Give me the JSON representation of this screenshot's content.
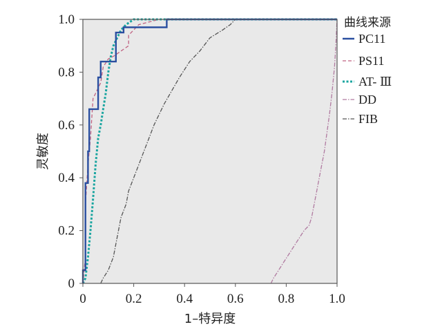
{
  "chart_data": {
    "type": "line",
    "title": "",
    "xlabel": "1–特异度",
    "ylabel": "灵敏度",
    "xlim": [
      0,
      1.0
    ],
    "ylim": [
      0,
      1.0
    ],
    "x_ticks": [
      "0",
      "0.2",
      "0.4",
      "0.6",
      "0.8",
      "1.0"
    ],
    "y_ticks": [
      "0",
      "0.2",
      "0.4",
      "0.6",
      "0.8",
      "1.0"
    ],
    "grid": false,
    "background": "#e9e9e9",
    "legend": {
      "title": "曲线来源",
      "placement": "right"
    },
    "series": [
      {
        "name": "PC11",
        "color": "#2a4fa0",
        "style": "solid",
        "points": [
          [
            0,
            0
          ],
          [
            0,
            0.05
          ],
          [
            0.01,
            0.05
          ],
          [
            0.01,
            0.38
          ],
          [
            0.02,
            0.38
          ],
          [
            0.02,
            0.5
          ],
          [
            0.025,
            0.5
          ],
          [
            0.025,
            0.66
          ],
          [
            0.06,
            0.66
          ],
          [
            0.06,
            0.78
          ],
          [
            0.07,
            0.78
          ],
          [
            0.07,
            0.84
          ],
          [
            0.13,
            0.84
          ],
          [
            0.13,
            0.95
          ],
          [
            0.16,
            0.95
          ],
          [
            0.16,
            0.97
          ],
          [
            0.33,
            0.97
          ],
          [
            0.33,
            1.0
          ],
          [
            1.0,
            1.0
          ]
        ]
      },
      {
        "name": "PS11",
        "color": "#c06080",
        "style": "dashed",
        "points": [
          [
            0,
            0
          ],
          [
            0.01,
            0.1
          ],
          [
            0.01,
            0.3
          ],
          [
            0.02,
            0.45
          ],
          [
            0.03,
            0.55
          ],
          [
            0.04,
            0.7
          ],
          [
            0.05,
            0.72
          ],
          [
            0.07,
            0.76
          ],
          [
            0.08,
            0.82
          ],
          [
            0.1,
            0.85
          ],
          [
            0.12,
            0.86
          ],
          [
            0.15,
            0.88
          ],
          [
            0.18,
            0.9
          ],
          [
            0.18,
            0.94
          ],
          [
            0.2,
            0.96
          ],
          [
            0.22,
            0.98
          ],
          [
            0.3,
            1.0
          ],
          [
            1.0,
            1.0
          ]
        ]
      },
      {
        "name": "AT- Ⅲ",
        "color": "#1aa5a0",
        "style": "dotted",
        "points": [
          [
            0,
            0
          ],
          [
            0.01,
            0.02
          ],
          [
            0.02,
            0.1
          ],
          [
            0.03,
            0.2
          ],
          [
            0.04,
            0.32
          ],
          [
            0.05,
            0.45
          ],
          [
            0.06,
            0.55
          ],
          [
            0.07,
            0.6
          ],
          [
            0.08,
            0.66
          ],
          [
            0.09,
            0.72
          ],
          [
            0.1,
            0.8
          ],
          [
            0.11,
            0.86
          ],
          [
            0.12,
            0.9
          ],
          [
            0.13,
            0.92
          ],
          [
            0.15,
            0.96
          ],
          [
            0.17,
            0.98
          ],
          [
            0.2,
            1.0
          ],
          [
            1.0,
            1.0
          ]
        ]
      },
      {
        "name": "DD",
        "color": "#b07aa0",
        "style": "dashdot",
        "points": [
          [
            0.74,
            0
          ],
          [
            0.75,
            0.02
          ],
          [
            0.77,
            0.05
          ],
          [
            0.79,
            0.08
          ],
          [
            0.81,
            0.11
          ],
          [
            0.83,
            0.14
          ],
          [
            0.85,
            0.17
          ],
          [
            0.87,
            0.2
          ],
          [
            0.89,
            0.22
          ],
          [
            0.9,
            0.25
          ],
          [
            0.91,
            0.3
          ],
          [
            0.92,
            0.35
          ],
          [
            0.93,
            0.4
          ],
          [
            0.94,
            0.45
          ],
          [
            0.95,
            0.5
          ],
          [
            0.96,
            0.57
          ],
          [
            0.97,
            0.64
          ],
          [
            0.98,
            0.72
          ],
          [
            0.99,
            0.82
          ],
          [
            0.995,
            0.9
          ],
          [
            1.0,
            1.0
          ]
        ]
      },
      {
        "name": "FIB",
        "color": "#555555",
        "style": "dashdot",
        "points": [
          [
            0.07,
            0
          ],
          [
            0.08,
            0.02
          ],
          [
            0.1,
            0.05
          ],
          [
            0.12,
            0.1
          ],
          [
            0.13,
            0.15
          ],
          [
            0.14,
            0.2
          ],
          [
            0.15,
            0.25
          ],
          [
            0.17,
            0.3
          ],
          [
            0.18,
            0.35
          ],
          [
            0.2,
            0.4
          ],
          [
            0.22,
            0.45
          ],
          [
            0.24,
            0.5
          ],
          [
            0.26,
            0.55
          ],
          [
            0.28,
            0.6
          ],
          [
            0.3,
            0.64
          ],
          [
            0.32,
            0.68
          ],
          [
            0.35,
            0.73
          ],
          [
            0.38,
            0.78
          ],
          [
            0.42,
            0.84
          ],
          [
            0.46,
            0.88
          ],
          [
            0.5,
            0.93
          ],
          [
            0.55,
            0.96
          ],
          [
            0.58,
            0.98
          ],
          [
            0.6,
            1.0
          ],
          [
            1.0,
            1.0
          ]
        ]
      }
    ]
  }
}
